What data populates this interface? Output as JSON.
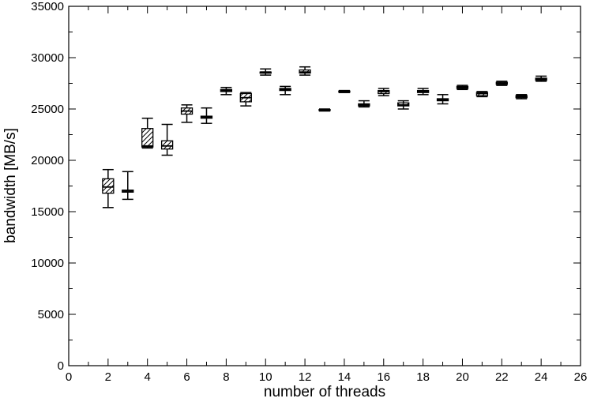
{
  "chart_data": {
    "type": "box",
    "xlabel": "number of threads",
    "ylabel": "bandwidth [MB/s]",
    "xlim": [
      0,
      26
    ],
    "ylim": [
      0,
      35000
    ],
    "xticks": [
      "0",
      "2",
      "4",
      "6",
      "8",
      "10",
      "12",
      "14",
      "16",
      "18",
      "20",
      "22",
      "24",
      "26"
    ],
    "yticks": [
      "0",
      "5000",
      "10000",
      "15000",
      "20000",
      "25000",
      "30000",
      "35000"
    ],
    "grid": false,
    "legend": "none",
    "series": [
      {
        "boxes": [
          {
            "x": 2,
            "min": 15400,
            "q1": 16800,
            "median": 17400,
            "q3": 18200,
            "max": 19100
          },
          {
            "x": 3,
            "min": 16200,
            "q1": 16900,
            "median": 17000,
            "q3": 17100,
            "max": 18900
          },
          {
            "x": 4,
            "min": 21200,
            "q1": 21300,
            "median": 21400,
            "q3": 23100,
            "max": 24100
          },
          {
            "x": 5,
            "min": 20500,
            "q1": 21100,
            "median": 21400,
            "q3": 21900,
            "max": 23500
          },
          {
            "x": 6,
            "min": 23700,
            "q1": 24500,
            "median": 24800,
            "q3": 25100,
            "max": 25400
          },
          {
            "x": 7,
            "min": 23600,
            "q1": 24100,
            "median": 24200,
            "q3": 24300,
            "max": 25100
          },
          {
            "x": 8,
            "min": 26400,
            "q1": 26700,
            "median": 26800,
            "q3": 26900,
            "max": 27100
          },
          {
            "x": 9,
            "min": 25300,
            "q1": 25700,
            "median": 26100,
            "q3": 26500,
            "max": 26600
          },
          {
            "x": 10,
            "min": 28300,
            "q1": 28500,
            "median": 28600,
            "q3": 28600,
            "max": 28900
          },
          {
            "x": 11,
            "min": 26400,
            "q1": 26800,
            "median": 26900,
            "q3": 27000,
            "max": 27200
          },
          {
            "x": 12,
            "min": 28300,
            "q1": 28500,
            "median": 28600,
            "q3": 28800,
            "max": 29100
          },
          {
            "x": 13,
            "min": 24800,
            "q1": 24850,
            "median": 24900,
            "q3": 24950,
            "max": 25000
          },
          {
            "x": 14,
            "min": 26600,
            "q1": 26650,
            "median": 26700,
            "q3": 26750,
            "max": 26800
          },
          {
            "x": 15,
            "min": 25200,
            "q1": 25300,
            "median": 25400,
            "q3": 25500,
            "max": 25800
          },
          {
            "x": 16,
            "min": 26300,
            "q1": 26500,
            "median": 26700,
            "q3": 26800,
            "max": 27000
          },
          {
            "x": 17,
            "min": 25000,
            "q1": 25300,
            "median": 25400,
            "q3": 25600,
            "max": 25800
          },
          {
            "x": 18,
            "min": 26400,
            "q1": 26600,
            "median": 26700,
            "q3": 26800,
            "max": 27000
          },
          {
            "x": 19,
            "min": 25500,
            "q1": 25800,
            "median": 25900,
            "q3": 26000,
            "max": 26400
          },
          {
            "x": 20,
            "min": 26900,
            "q1": 27000,
            "median": 27100,
            "q3": 27200,
            "max": 27300
          },
          {
            "x": 21,
            "min": 26200,
            "q1": 26300,
            "median": 26500,
            "q3": 26600,
            "max": 26700
          },
          {
            "x": 22,
            "min": 27300,
            "q1": 27400,
            "median": 27500,
            "q3": 27600,
            "max": 27700
          },
          {
            "x": 23,
            "min": 26000,
            "q1": 26100,
            "median": 26200,
            "q3": 26300,
            "max": 26400
          },
          {
            "x": 24,
            "min": 27700,
            "q1": 27800,
            "median": 27900,
            "q3": 28000,
            "max": 28200
          }
        ]
      }
    ]
  }
}
